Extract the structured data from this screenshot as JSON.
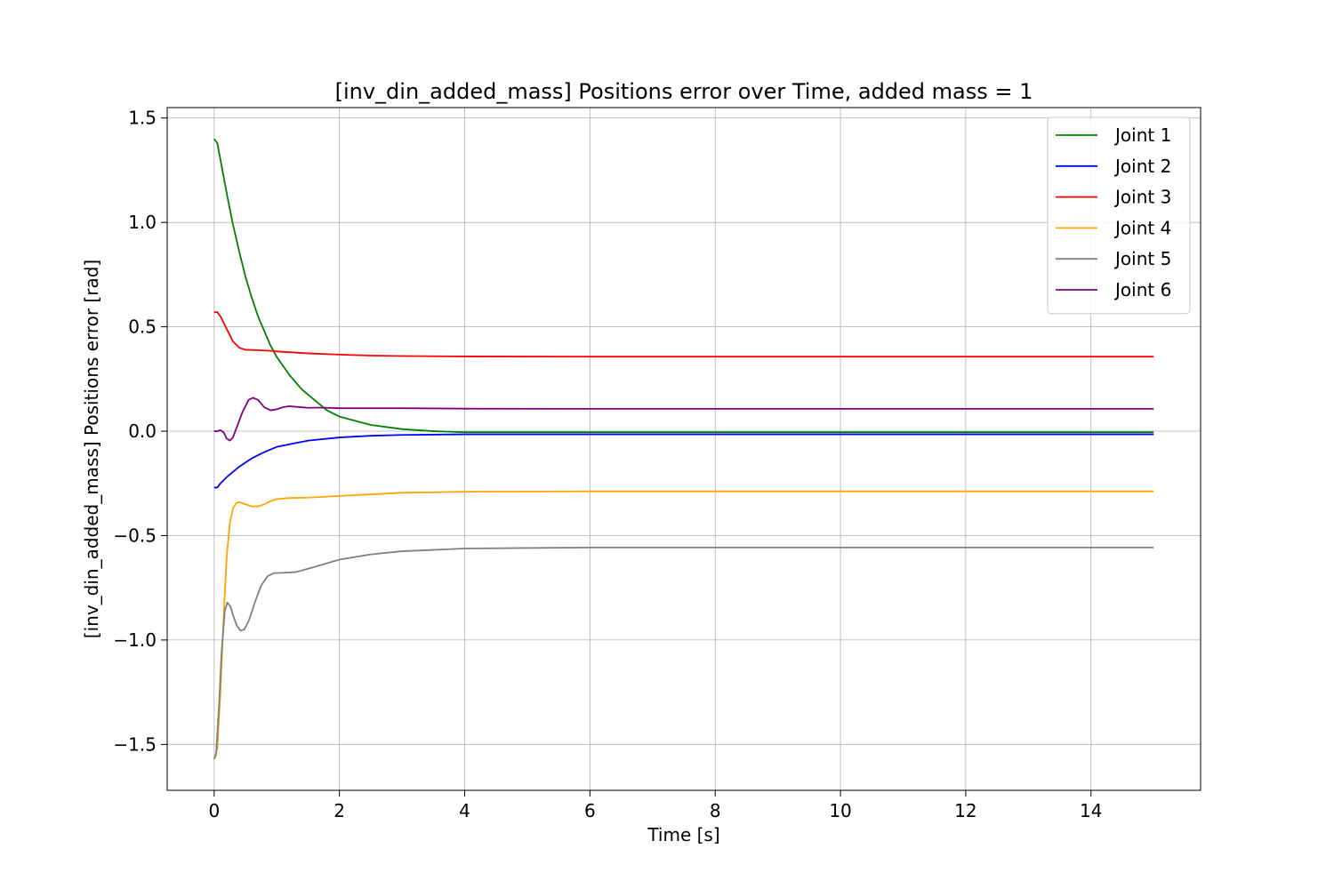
{
  "chart_data": {
    "type": "line",
    "title": "[inv_din_added_mass] Positions error over Time, added mass = 1",
    "xlabel": "Time [s]",
    "ylabel": "[inv_din_added_mass] Positions error [rad]",
    "xlim": [
      -0.75,
      15.75
    ],
    "ylim": [
      -1.72,
      1.55
    ],
    "xticks": [
      0,
      2,
      4,
      6,
      8,
      10,
      12,
      14
    ],
    "xtick_labels": [
      "0",
      "2",
      "4",
      "6",
      "8",
      "10",
      "12",
      "14"
    ],
    "yticks": [
      -1.5,
      -1.0,
      -0.5,
      0.0,
      0.5,
      1.0,
      1.5
    ],
    "ytick_labels": [
      "−1.5",
      "−1.0",
      "−0.5",
      "0.0",
      "0.5",
      "1.0",
      "1.5"
    ],
    "grid": true,
    "legend_position": "top-right",
    "series": [
      {
        "name": "Joint 1",
        "color": "#008000",
        "points": [
          [
            0,
            1.4
          ],
          [
            0.05,
            1.38
          ],
          [
            0.1,
            1.3
          ],
          [
            0.2,
            1.14
          ],
          [
            0.3,
            0.99
          ],
          [
            0.4,
            0.86
          ],
          [
            0.5,
            0.74
          ],
          [
            0.6,
            0.64
          ],
          [
            0.7,
            0.55
          ],
          [
            0.8,
            0.48
          ],
          [
            0.9,
            0.41
          ],
          [
            1.0,
            0.355
          ],
          [
            1.2,
            0.27
          ],
          [
            1.4,
            0.2
          ],
          [
            1.6,
            0.15
          ],
          [
            1.8,
            0.1
          ],
          [
            2.0,
            0.07
          ],
          [
            2.5,
            0.03
          ],
          [
            3.0,
            0.01
          ],
          [
            3.5,
            0.0
          ],
          [
            4.0,
            -0.005
          ],
          [
            6.0,
            -0.005
          ],
          [
            10.0,
            -0.005
          ],
          [
            15.0,
            -0.005
          ]
        ]
      },
      {
        "name": "Joint 2",
        "color": "#0000ff",
        "points": [
          [
            0,
            -0.27
          ],
          [
            0.05,
            -0.27
          ],
          [
            0.1,
            -0.25
          ],
          [
            0.2,
            -0.22
          ],
          [
            0.4,
            -0.17
          ],
          [
            0.6,
            -0.13
          ],
          [
            0.8,
            -0.1
          ],
          [
            1.0,
            -0.075
          ],
          [
            1.25,
            -0.06
          ],
          [
            1.5,
            -0.045
          ],
          [
            2.0,
            -0.03
          ],
          [
            2.5,
            -0.022
          ],
          [
            3.0,
            -0.018
          ],
          [
            4.0,
            -0.015
          ],
          [
            6.0,
            -0.015
          ],
          [
            10.0,
            -0.015
          ],
          [
            15.0,
            -0.015
          ]
        ]
      },
      {
        "name": "Joint 3",
        "color": "#ff0000",
        "points": [
          [
            0,
            0.57
          ],
          [
            0.05,
            0.57
          ],
          [
            0.1,
            0.55
          ],
          [
            0.2,
            0.49
          ],
          [
            0.3,
            0.43
          ],
          [
            0.4,
            0.4
          ],
          [
            0.5,
            0.39
          ],
          [
            0.7,
            0.388
          ],
          [
            0.9,
            0.385
          ],
          [
            1.0,
            0.382
          ],
          [
            1.5,
            0.373
          ],
          [
            2.0,
            0.367
          ],
          [
            2.5,
            0.362
          ],
          [
            3.0,
            0.36
          ],
          [
            4.0,
            0.358
          ],
          [
            6.0,
            0.357
          ],
          [
            10.0,
            0.357
          ],
          [
            15.0,
            0.357
          ]
        ]
      },
      {
        "name": "Joint 4",
        "color": "#ffa500",
        "points": [
          [
            0,
            -1.57
          ],
          [
            0.05,
            -1.52
          ],
          [
            0.1,
            -1.25
          ],
          [
            0.15,
            -0.9
          ],
          [
            0.2,
            -0.6
          ],
          [
            0.25,
            -0.44
          ],
          [
            0.3,
            -0.37
          ],
          [
            0.35,
            -0.345
          ],
          [
            0.4,
            -0.34
          ],
          [
            0.5,
            -0.35
          ],
          [
            0.6,
            -0.36
          ],
          [
            0.7,
            -0.36
          ],
          [
            0.8,
            -0.35
          ],
          [
            0.9,
            -0.335
          ],
          [
            1.0,
            -0.325
          ],
          [
            1.2,
            -0.32
          ],
          [
            1.5,
            -0.318
          ],
          [
            2.0,
            -0.31
          ],
          [
            3.0,
            -0.295
          ],
          [
            4.0,
            -0.29
          ],
          [
            6.0,
            -0.288
          ],
          [
            10.0,
            -0.288
          ],
          [
            15.0,
            -0.288
          ]
        ]
      },
      {
        "name": "Joint 5",
        "color": "#808080",
        "points": [
          [
            0,
            -1.57
          ],
          [
            0.03,
            -1.55
          ],
          [
            0.08,
            -1.3
          ],
          [
            0.12,
            -1.05
          ],
          [
            0.17,
            -0.86
          ],
          [
            0.21,
            -0.82
          ],
          [
            0.26,
            -0.84
          ],
          [
            0.3,
            -0.88
          ],
          [
            0.36,
            -0.93
          ],
          [
            0.42,
            -0.955
          ],
          [
            0.48,
            -0.95
          ],
          [
            0.55,
            -0.91
          ],
          [
            0.65,
            -0.82
          ],
          [
            0.75,
            -0.74
          ],
          [
            0.85,
            -0.695
          ],
          [
            0.95,
            -0.68
          ],
          [
            1.1,
            -0.678
          ],
          [
            1.3,
            -0.675
          ],
          [
            1.6,
            -0.65
          ],
          [
            2.0,
            -0.615
          ],
          [
            2.5,
            -0.59
          ],
          [
            3.0,
            -0.575
          ],
          [
            4.0,
            -0.562
          ],
          [
            6.0,
            -0.557
          ],
          [
            10.0,
            -0.557
          ],
          [
            15.0,
            -0.557
          ]
        ]
      },
      {
        "name": "Joint 6",
        "color": "#800080",
        "points": [
          [
            0,
            0.0
          ],
          [
            0.05,
            0.0
          ],
          [
            0.1,
            0.005
          ],
          [
            0.15,
            -0.005
          ],
          [
            0.2,
            -0.035
          ],
          [
            0.25,
            -0.045
          ],
          [
            0.3,
            -0.03
          ],
          [
            0.35,
            0.01
          ],
          [
            0.45,
            0.09
          ],
          [
            0.55,
            0.15
          ],
          [
            0.62,
            0.16
          ],
          [
            0.7,
            0.15
          ],
          [
            0.8,
            0.115
          ],
          [
            0.9,
            0.1
          ],
          [
            1.0,
            0.105
          ],
          [
            1.1,
            0.115
          ],
          [
            1.2,
            0.12
          ],
          [
            1.3,
            0.117
          ],
          [
            1.5,
            0.112
          ],
          [
            1.7,
            0.113
          ],
          [
            2.0,
            0.11
          ],
          [
            2.5,
            0.11
          ],
          [
            3.0,
            0.11
          ],
          [
            4.0,
            0.108
          ],
          [
            6.0,
            0.107
          ],
          [
            10.0,
            0.107
          ],
          [
            15.0,
            0.107
          ]
        ]
      }
    ]
  }
}
